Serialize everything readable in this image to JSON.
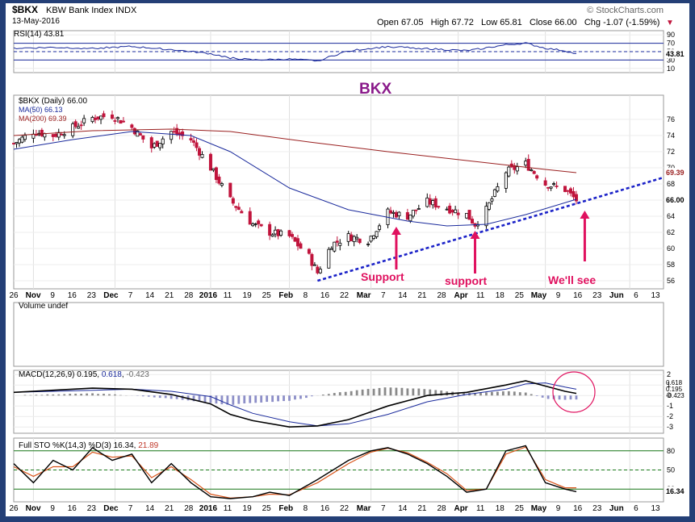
{
  "header": {
    "symbol": "$BKX",
    "name": "KBW Bank Index",
    "exchange": "INDX",
    "date": "13-May-2016",
    "source": "© StockCharts.com",
    "ohlc": "Open 67.05   High 67.72   Low 65.81   Close 66.00   Chg -1.07 (-1.59%)",
    "change_arrow": "▼"
  },
  "colors": {
    "candle_up": "#ffffff",
    "candle_down": "#c0143c",
    "ma50": "#1a2a9c",
    "ma200": "#9a2020",
    "trendline": "#1b22c8",
    "annotation": "#e0115f",
    "title": "#8a1a8a",
    "volume_bar": "#8d8fc8",
    "guide": "#1a7a1a"
  },
  "annotations": {
    "title": "BKX",
    "support1": "Support",
    "support2": "support",
    "wellsee": "We'll see"
  },
  "x_axis": {
    "labels": [
      "26",
      "Nov",
      "9",
      "16",
      "23",
      "Dec",
      "7",
      "14",
      "21",
      "28",
      "2016",
      "11",
      "19",
      "25",
      "Feb",
      "8",
      "16",
      "22",
      "Mar",
      "7",
      "14",
      "21",
      "28",
      "Apr",
      "11",
      "18",
      "25",
      "May",
      "9",
      "16",
      "23",
      "Jun",
      "6",
      "13"
    ],
    "start_date": "2015-10-26",
    "days": 231
  },
  "chart_data": [
    {
      "type": "line",
      "panel": "RSI",
      "legend": "RSI(14) 43.81",
      "y_ticks": [
        10,
        30,
        50,
        70,
        90
      ],
      "ylim": [
        0,
        100
      ],
      "reference_lines": [
        30,
        70
      ],
      "last_value": "43.81",
      "x": [
        "2015-10-26",
        "2015-11-09",
        "2015-11-23",
        "2015-12-07",
        "2015-12-21",
        "2016-01-04",
        "2016-01-11",
        "2016-01-19",
        "2016-02-01",
        "2016-02-11",
        "2016-02-22",
        "2016-03-07",
        "2016-03-21",
        "2016-04-04",
        "2016-04-18",
        "2016-04-25",
        "2016-05-02",
        "2016-05-09",
        "2016-05-13"
      ],
      "values": [
        58,
        60,
        58,
        62,
        55,
        45,
        35,
        30,
        32,
        28,
        52,
        62,
        57,
        52,
        66,
        70,
        58,
        52,
        44
      ]
    },
    {
      "type": "candlestick",
      "panel": "price",
      "legend": {
        "main": "$BKX (Daily) 66.00",
        "ma50": "MA(50) 66.13",
        "ma200": "MA(200) 69.39"
      },
      "y_ticks": [
        56,
        58,
        60,
        62,
        64,
        66,
        68,
        70,
        72,
        74,
        76
      ],
      "ylim": [
        55,
        79
      ],
      "last_labels": {
        "ma200": "69.39",
        "close": "66.00"
      },
      "closes": {
        "x": [
          "2015-10-26",
          "2015-11-02",
          "2015-11-09",
          "2015-11-16",
          "2015-11-23",
          "2015-11-30",
          "2015-12-07",
          "2015-12-14",
          "2015-12-21",
          "2015-12-28",
          "2016-01-04",
          "2016-01-11",
          "2016-01-19",
          "2016-01-25",
          "2016-02-01",
          "2016-02-08",
          "2016-02-11",
          "2016-02-16",
          "2016-02-22",
          "2016-02-29",
          "2016-03-07",
          "2016-03-14",
          "2016-03-21",
          "2016-03-28",
          "2016-04-04",
          "2016-04-07",
          "2016-04-11",
          "2016-04-18",
          "2016-04-25",
          "2016-05-02",
          "2016-05-09",
          "2016-05-13"
        ],
        "values": [
          73.0,
          74.5,
          74.0,
          75.0,
          76.2,
          76.5,
          75.0,
          72.5,
          74.5,
          73.5,
          70.0,
          66.0,
          63.0,
          62.0,
          61.5,
          59.0,
          57.0,
          60.5,
          61.5,
          61.0,
          64.5,
          64.0,
          65.8,
          65.0,
          64.2,
          63.0,
          64.8,
          69.5,
          70.5,
          68.0,
          67.3,
          66.0
        ]
      },
      "ma50": {
        "x": [
          "2015-10-26",
          "2015-11-16",
          "2015-12-07",
          "2015-12-28",
          "2016-01-11",
          "2016-02-01",
          "2016-02-22",
          "2016-03-14",
          "2016-03-28",
          "2016-04-11",
          "2016-04-25",
          "2016-05-13"
        ],
        "values": [
          72.3,
          73.5,
          74.5,
          74.0,
          72.0,
          67.5,
          64.8,
          63.4,
          62.8,
          63.0,
          64.2,
          66.1
        ]
      },
      "ma200": {
        "x": [
          "2015-10-26",
          "2015-11-23",
          "2015-12-21",
          "2016-01-11",
          "2016-02-08",
          "2016-03-07",
          "2016-04-04",
          "2016-05-02",
          "2016-05-13"
        ],
        "values": [
          74.0,
          74.6,
          74.8,
          74.5,
          73.2,
          72.0,
          70.9,
          69.8,
          69.4
        ]
      },
      "trendline": {
        "x": [
          "2016-02-11",
          "2016-05-13",
          "2016-06-13"
        ],
        "values": [
          56.0,
          66.0,
          68.8
        ]
      },
      "markers": [
        {
          "label": "Support",
          "x": "2016-03-10",
          "at": 63.0
        },
        {
          "label": "support",
          "x": "2016-04-07",
          "at": 62.5
        },
        {
          "label": "We'll see",
          "x": "2016-05-16",
          "at": 65.0
        }
      ]
    },
    {
      "type": "bar",
      "panel": "volume",
      "legend": "Volume undef"
    },
    {
      "type": "line",
      "panel": "MACD",
      "legend": {
        "label": "MACD(12,26,9)",
        "macd": "0.195",
        "signal": "0.618",
        "hist": "-0.423"
      },
      "y_ticks": [
        -3,
        -2,
        -1,
        0,
        1,
        2
      ],
      "ylim": [
        -3.6,
        2.4
      ],
      "last_labels": [
        "0.618",
        "0.195",
        "-0.423"
      ],
      "x": [
        "2015-10-26",
        "2015-11-09",
        "2015-11-23",
        "2015-12-07",
        "2015-12-21",
        "2016-01-04",
        "2016-01-11",
        "2016-01-19",
        "2016-02-01",
        "2016-02-11",
        "2016-02-22",
        "2016-03-07",
        "2016-03-21",
        "2016-04-04",
        "2016-04-18",
        "2016-04-25",
        "2016-05-02",
        "2016-05-09",
        "2016-05-13"
      ],
      "macd": [
        0.3,
        0.5,
        0.7,
        0.6,
        0.1,
        -0.8,
        -1.8,
        -2.4,
        -3.0,
        -2.9,
        -2.3,
        -1.0,
        0.0,
        0.3,
        1.0,
        1.4,
        0.9,
        0.4,
        0.2
      ],
      "signal": [
        0.3,
        0.4,
        0.5,
        0.6,
        0.4,
        -0.1,
        -0.9,
        -1.7,
        -2.5,
        -2.9,
        -2.7,
        -1.8,
        -0.6,
        0.1,
        0.6,
        1.1,
        1.2,
        0.8,
        0.6
      ],
      "histogram": [
        0.0,
        0.1,
        0.2,
        0.0,
        -0.3,
        -0.7,
        -0.9,
        -0.7,
        -0.5,
        0.0,
        0.4,
        0.8,
        0.6,
        0.2,
        0.4,
        0.3,
        -0.3,
        -0.4,
        -0.4
      ]
    },
    {
      "type": "line",
      "panel": "STO",
      "legend": {
        "label": "Full STO %K(14,3) %D(3)",
        "k": "16.34",
        "d": "21.89"
      },
      "y_ticks": [
        20,
        50,
        80
      ],
      "ylim": [
        0,
        100
      ],
      "last_label": "16.34",
      "x": [
        "2015-10-26",
        "2015-11-02",
        "2015-11-09",
        "2015-11-16",
        "2015-11-23",
        "2015-11-30",
        "2015-12-07",
        "2015-12-14",
        "2015-12-21",
        "2015-12-28",
        "2016-01-04",
        "2016-01-11",
        "2016-01-19",
        "2016-01-25",
        "2016-02-01",
        "2016-02-11",
        "2016-02-22",
        "2016-03-01",
        "2016-03-07",
        "2016-03-14",
        "2016-03-21",
        "2016-03-28",
        "2016-04-04",
        "2016-04-11",
        "2016-04-18",
        "2016-04-25",
        "2016-05-02",
        "2016-05-09",
        "2016-05-13"
      ],
      "k": [
        60,
        30,
        65,
        50,
        85,
        65,
        75,
        30,
        60,
        30,
        8,
        5,
        8,
        15,
        10,
        35,
        65,
        80,
        85,
        75,
        60,
        40,
        15,
        20,
        80,
        88,
        30,
        20,
        16
      ],
      "d": [
        55,
        40,
        55,
        55,
        78,
        70,
        72,
        38,
        55,
        35,
        12,
        6,
        8,
        12,
        11,
        30,
        60,
        78,
        84,
        77,
        62,
        44,
        18,
        20,
        75,
        86,
        35,
        22,
        22
      ]
    }
  ]
}
